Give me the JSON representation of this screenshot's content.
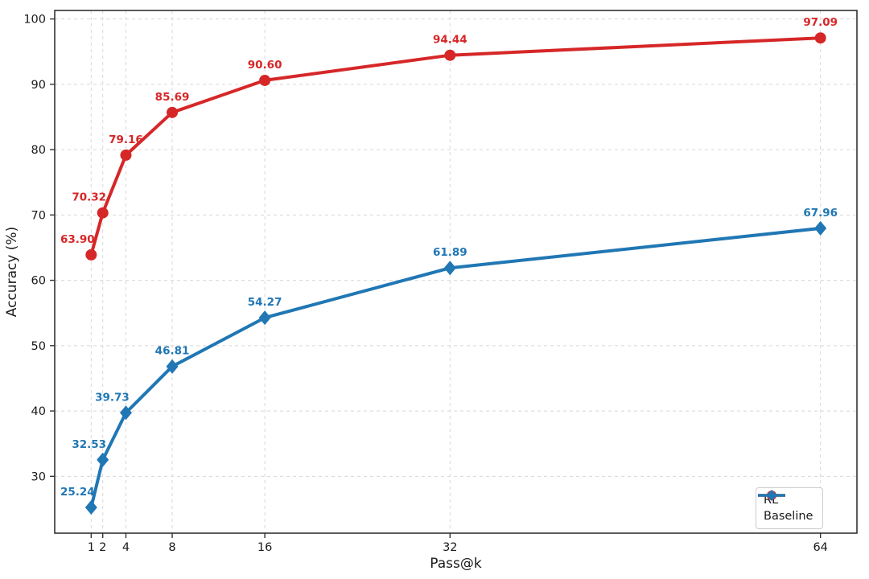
{
  "chart_data": {
    "type": "line",
    "x": [
      1,
      2,
      4,
      8,
      16,
      32,
      64
    ],
    "series": [
      {
        "name": "RL",
        "color": "#d62728",
        "marker": "circle",
        "values": [
          63.9,
          70.32,
          79.16,
          85.69,
          90.6,
          94.44,
          97.09
        ]
      },
      {
        "name": "Baseline",
        "color": "#2077b4",
        "marker": "diamond",
        "values": [
          25.24,
          32.53,
          39.73,
          46.81,
          54.27,
          61.89,
          67.96
        ]
      }
    ],
    "title": "",
    "xlabel": "Pass@k",
    "ylabel": "Accuracy (%)",
    "xticks": [
      1,
      2,
      4,
      8,
      16,
      32,
      64
    ],
    "yticks": [
      30,
      40,
      50,
      60,
      70,
      80,
      90,
      100
    ],
    "xlim": [
      -2.15,
      67.15
    ],
    "ylim": [
      21.3,
      101.3
    ],
    "grid": "dashed",
    "data_labels": true,
    "legend_position": "lower right",
    "style": {
      "grid_color": "#d8d8d8",
      "spine_color": "#333333",
      "tick_label_color": "#1a1a1a",
      "background": "#ffffff"
    }
  }
}
